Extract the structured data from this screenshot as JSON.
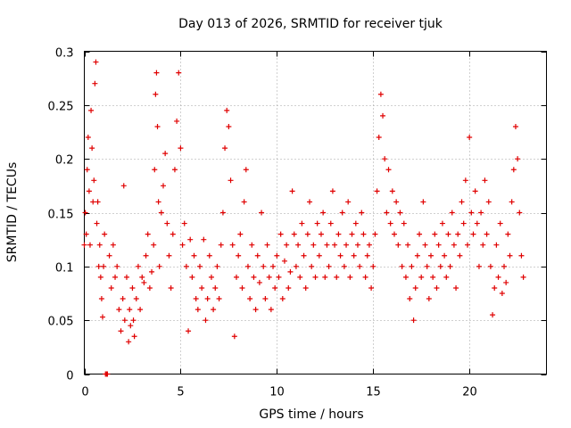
{
  "chart_data": {
    "type": "scatter",
    "title": "Day 013 of 2026, SRMTID for receiver tjuk",
    "xlabel": "GPS time / hours",
    "ylabel": "SRMTID / TECUs",
    "xlim": [
      0,
      24
    ],
    "ylim": [
      0,
      0.3
    ],
    "xticks": [
      0,
      5,
      10,
      15,
      20
    ],
    "xtick_labels": [
      "0",
      "5",
      "10",
      "15",
      "20"
    ],
    "yticks": [
      0,
      0.05,
      0.1,
      0.15,
      0.2,
      0.25,
      0.3
    ],
    "ytick_labels": [
      "0",
      "0.05",
      "0.1",
      "0.15",
      "0.2",
      "0.25",
      "0.3"
    ],
    "grid": true,
    "marker": "+",
    "color": "#e00000",
    "series": [
      {
        "points": [
          [
            0.0,
            0.12
          ],
          [
            0.05,
            0.15
          ],
          [
            0.1,
            0.13
          ],
          [
            0.15,
            0.19
          ],
          [
            0.2,
            0.22
          ],
          [
            0.25,
            0.17
          ],
          [
            0.3,
            0.12
          ],
          [
            0.35,
            0.245
          ],
          [
            0.4,
            0.21
          ],
          [
            0.45,
            0.16
          ],
          [
            0.5,
            0.18
          ],
          [
            0.55,
            0.27
          ],
          [
            0.6,
            0.29
          ],
          [
            0.65,
            0.14
          ],
          [
            0.7,
            0.16
          ],
          [
            0.75,
            0.1
          ],
          [
            0.8,
            0.12
          ],
          [
            0.85,
            0.09
          ],
          [
            0.9,
            0.07
          ],
          [
            0.95,
            0.053
          ],
          [
            1.0,
            0.1
          ],
          [
            1.05,
            0.13
          ],
          [
            1.1,
            0.0
          ],
          [
            1.15,
            0.0
          ],
          [
            1.2,
            0.0
          ],
          [
            1.3,
            0.11
          ],
          [
            1.4,
            0.08
          ],
          [
            1.5,
            0.12
          ],
          [
            1.6,
            0.09
          ],
          [
            1.7,
            0.1
          ],
          [
            1.8,
            0.06
          ],
          [
            1.9,
            0.04
          ],
          [
            2.0,
            0.07
          ],
          [
            2.05,
            0.175
          ],
          [
            2.1,
            0.05
          ],
          [
            2.2,
            0.09
          ],
          [
            2.3,
            0.03
          ],
          [
            2.35,
            0.06
          ],
          [
            2.4,
            0.045
          ],
          [
            2.5,
            0.08
          ],
          [
            2.55,
            0.05
          ],
          [
            2.6,
            0.035
          ],
          [
            2.7,
            0.07
          ],
          [
            2.8,
            0.1
          ],
          [
            2.9,
            0.06
          ],
          [
            3.0,
            0.09
          ],
          [
            3.1,
            0.085
          ],
          [
            3.2,
            0.11
          ],
          [
            3.3,
            0.13
          ],
          [
            3.4,
            0.08
          ],
          [
            3.5,
            0.095
          ],
          [
            3.6,
            0.12
          ],
          [
            3.65,
            0.19
          ],
          [
            3.7,
            0.26
          ],
          [
            3.75,
            0.28
          ],
          [
            3.8,
            0.23
          ],
          [
            3.85,
            0.16
          ],
          [
            3.9,
            0.1
          ],
          [
            4.0,
            0.15
          ],
          [
            4.1,
            0.175
          ],
          [
            4.2,
            0.205
          ],
          [
            4.3,
            0.14
          ],
          [
            4.4,
            0.11
          ],
          [
            4.5,
            0.08
          ],
          [
            4.6,
            0.13
          ],
          [
            4.7,
            0.19
          ],
          [
            4.8,
            0.235
          ],
          [
            4.9,
            0.28
          ],
          [
            5.0,
            0.21
          ],
          [
            5.1,
            0.12
          ],
          [
            5.2,
            0.14
          ],
          [
            5.3,
            0.1
          ],
          [
            5.4,
            0.04
          ],
          [
            5.5,
            0.125
          ],
          [
            5.6,
            0.09
          ],
          [
            5.7,
            0.11
          ],
          [
            5.8,
            0.07
          ],
          [
            5.9,
            0.06
          ],
          [
            6.0,
            0.1
          ],
          [
            6.1,
            0.08
          ],
          [
            6.2,
            0.125
          ],
          [
            6.3,
            0.05
          ],
          [
            6.4,
            0.07
          ],
          [
            6.5,
            0.11
          ],
          [
            6.6,
            0.09
          ],
          [
            6.7,
            0.06
          ],
          [
            6.8,
            0.08
          ],
          [
            6.9,
            0.1
          ],
          [
            7.0,
            0.07
          ],
          [
            7.1,
            0.12
          ],
          [
            7.2,
            0.15
          ],
          [
            7.3,
            0.21
          ],
          [
            7.4,
            0.245
          ],
          [
            7.5,
            0.23
          ],
          [
            7.6,
            0.18
          ],
          [
            7.7,
            0.12
          ],
          [
            7.8,
            0.035
          ],
          [
            7.9,
            0.09
          ],
          [
            8.0,
            0.11
          ],
          [
            8.1,
            0.13
          ],
          [
            8.2,
            0.08
          ],
          [
            8.3,
            0.16
          ],
          [
            8.4,
            0.19
          ],
          [
            8.5,
            0.1
          ],
          [
            8.6,
            0.07
          ],
          [
            8.7,
            0.12
          ],
          [
            8.8,
            0.09
          ],
          [
            8.9,
            0.06
          ],
          [
            9.0,
            0.11
          ],
          [
            9.1,
            0.085
          ],
          [
            9.2,
            0.15
          ],
          [
            9.3,
            0.1
          ],
          [
            9.4,
            0.07
          ],
          [
            9.5,
            0.12
          ],
          [
            9.6,
            0.09
          ],
          [
            9.7,
            0.06
          ],
          [
            9.8,
            0.1
          ],
          [
            9.9,
            0.08
          ],
          [
            10.0,
            0.11
          ],
          [
            10.1,
            0.09
          ],
          [
            10.2,
            0.13
          ],
          [
            10.3,
            0.07
          ],
          [
            10.4,
            0.105
          ],
          [
            10.5,
            0.12
          ],
          [
            10.6,
            0.08
          ],
          [
            10.7,
            0.095
          ],
          [
            10.8,
            0.17
          ],
          [
            10.9,
            0.13
          ],
          [
            11.0,
            0.1
          ],
          [
            11.1,
            0.12
          ],
          [
            11.2,
            0.09
          ],
          [
            11.3,
            0.14
          ],
          [
            11.4,
            0.11
          ],
          [
            11.5,
            0.08
          ],
          [
            11.6,
            0.13
          ],
          [
            11.7,
            0.16
          ],
          [
            11.8,
            0.1
          ],
          [
            11.9,
            0.12
          ],
          [
            12.0,
            0.09
          ],
          [
            12.1,
            0.14
          ],
          [
            12.2,
            0.11
          ],
          [
            12.3,
            0.13
          ],
          [
            12.4,
            0.15
          ],
          [
            12.5,
            0.09
          ],
          [
            12.6,
            0.12
          ],
          [
            12.7,
            0.1
          ],
          [
            12.8,
            0.14
          ],
          [
            12.9,
            0.17
          ],
          [
            13.0,
            0.12
          ],
          [
            13.1,
            0.09
          ],
          [
            13.2,
            0.13
          ],
          [
            13.3,
            0.11
          ],
          [
            13.4,
            0.15
          ],
          [
            13.5,
            0.1
          ],
          [
            13.6,
            0.12
          ],
          [
            13.7,
            0.16
          ],
          [
            13.8,
            0.09
          ],
          [
            13.9,
            0.13
          ],
          [
            14.0,
            0.11
          ],
          [
            14.1,
            0.14
          ],
          [
            14.2,
            0.12
          ],
          [
            14.3,
            0.1
          ],
          [
            14.4,
            0.15
          ],
          [
            14.5,
            0.13
          ],
          [
            14.6,
            0.09
          ],
          [
            14.7,
            0.11
          ],
          [
            14.8,
            0.12
          ],
          [
            14.9,
            0.08
          ],
          [
            15.0,
            0.1
          ],
          [
            15.1,
            0.13
          ],
          [
            15.2,
            0.17
          ],
          [
            15.3,
            0.22
          ],
          [
            15.4,
            0.26
          ],
          [
            15.5,
            0.24
          ],
          [
            15.6,
            0.2
          ],
          [
            15.7,
            0.15
          ],
          [
            15.8,
            0.19
          ],
          [
            15.9,
            0.14
          ],
          [
            16.0,
            0.17
          ],
          [
            16.1,
            0.13
          ],
          [
            16.2,
            0.16
          ],
          [
            16.3,
            0.12
          ],
          [
            16.4,
            0.15
          ],
          [
            16.5,
            0.1
          ],
          [
            16.6,
            0.14
          ],
          [
            16.7,
            0.09
          ],
          [
            16.8,
            0.12
          ],
          [
            16.9,
            0.07
          ],
          [
            17.0,
            0.1
          ],
          [
            17.1,
            0.05
          ],
          [
            17.2,
            0.08
          ],
          [
            17.3,
            0.11
          ],
          [
            17.4,
            0.13
          ],
          [
            17.5,
            0.09
          ],
          [
            17.6,
            0.16
          ],
          [
            17.7,
            0.12
          ],
          [
            17.8,
            0.1
          ],
          [
            17.9,
            0.07
          ],
          [
            18.0,
            0.11
          ],
          [
            18.1,
            0.09
          ],
          [
            18.2,
            0.13
          ],
          [
            18.3,
            0.08
          ],
          [
            18.4,
            0.12
          ],
          [
            18.5,
            0.1
          ],
          [
            18.6,
            0.14
          ],
          [
            18.7,
            0.11
          ],
          [
            18.8,
            0.09
          ],
          [
            18.9,
            0.13
          ],
          [
            19.0,
            0.1
          ],
          [
            19.1,
            0.15
          ],
          [
            19.2,
            0.12
          ],
          [
            19.3,
            0.08
          ],
          [
            19.4,
            0.13
          ],
          [
            19.5,
            0.11
          ],
          [
            19.6,
            0.16
          ],
          [
            19.7,
            0.14
          ],
          [
            19.8,
            0.18
          ],
          [
            19.9,
            0.12
          ],
          [
            20.0,
            0.22
          ],
          [
            20.1,
            0.15
          ],
          [
            20.2,
            0.13
          ],
          [
            20.3,
            0.17
          ],
          [
            20.4,
            0.14
          ],
          [
            20.5,
            0.1
          ],
          [
            20.6,
            0.15
          ],
          [
            20.7,
            0.12
          ],
          [
            20.8,
            0.18
          ],
          [
            20.9,
            0.13
          ],
          [
            21.0,
            0.16
          ],
          [
            21.1,
            0.1
          ],
          [
            21.2,
            0.055
          ],
          [
            21.3,
            0.08
          ],
          [
            21.4,
            0.12
          ],
          [
            21.5,
            0.09
          ],
          [
            21.6,
            0.14
          ],
          [
            21.7,
            0.075
          ],
          [
            21.8,
            0.1
          ],
          [
            21.9,
            0.085
          ],
          [
            22.0,
            0.13
          ],
          [
            22.1,
            0.11
          ],
          [
            22.2,
            0.16
          ],
          [
            22.3,
            0.19
          ],
          [
            22.4,
            0.23
          ],
          [
            22.5,
            0.2
          ],
          [
            22.6,
            0.15
          ],
          [
            22.7,
            0.11
          ],
          [
            22.8,
            0.09
          ]
        ]
      }
    ]
  }
}
